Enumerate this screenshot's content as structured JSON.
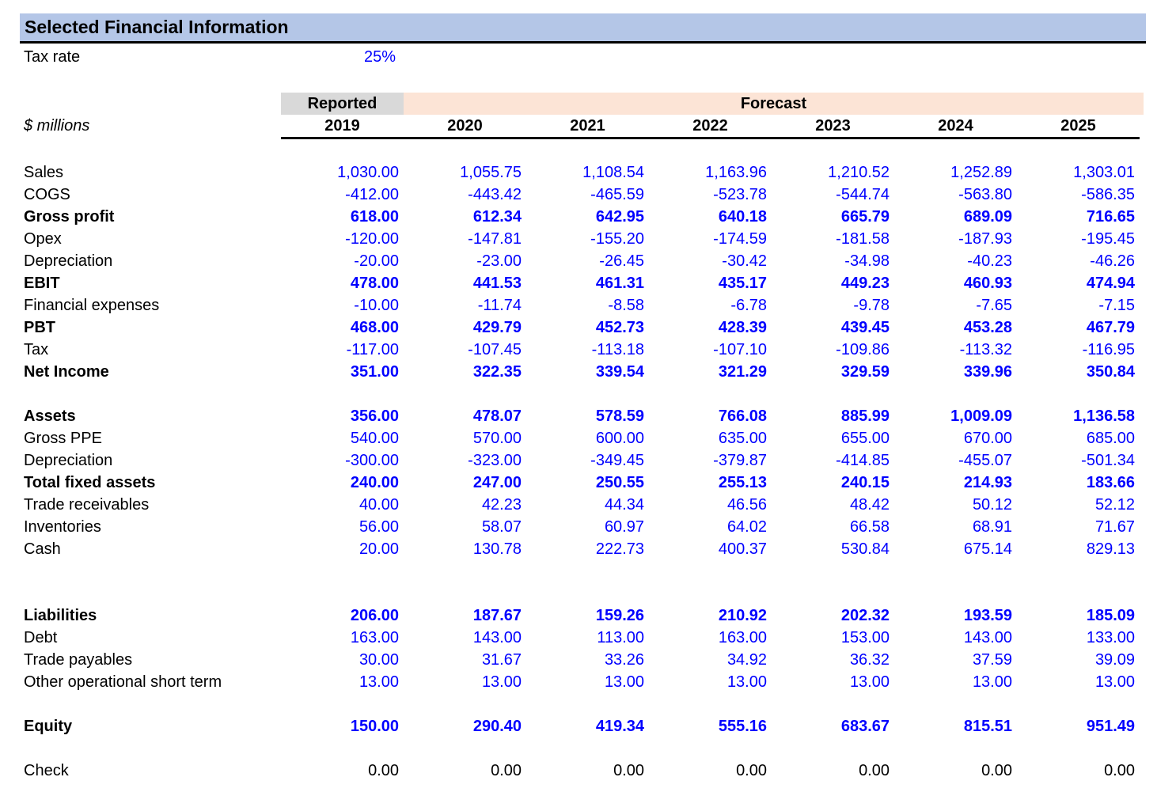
{
  "title": "Selected Financial Information",
  "tax": {
    "label": "Tax rate",
    "value": "25%"
  },
  "table": {
    "unit_label": "$ millions",
    "reported_label": "Reported",
    "forecast_label": "Forecast",
    "years": [
      "2019",
      "2020",
      "2021",
      "2022",
      "2023",
      "2024",
      "2025"
    ],
    "sections": [
      {
        "name": "income-statement",
        "gap_rows": 0,
        "rows": [
          {
            "label": "Sales",
            "bold": false,
            "values": [
              "1,030.00",
              "1,055.75",
              "1,108.54",
              "1,163.96",
              "1,210.52",
              "1,252.89",
              "1,303.01"
            ]
          },
          {
            "label": "COGS",
            "bold": false,
            "values": [
              "-412.00",
              "-443.42",
              "-465.59",
              "-523.78",
              "-544.74",
              "-563.80",
              "-586.35"
            ]
          },
          {
            "label": "Gross profit",
            "bold": true,
            "values": [
              "618.00",
              "612.34",
              "642.95",
              "640.18",
              "665.79",
              "689.09",
              "716.65"
            ]
          },
          {
            "label": "Opex",
            "bold": false,
            "values": [
              "-120.00",
              "-147.81",
              "-155.20",
              "-174.59",
              "-181.58",
              "-187.93",
              "-195.45"
            ]
          },
          {
            "label": "Depreciation",
            "bold": false,
            "values": [
              "-20.00",
              "-23.00",
              "-26.45",
              "-30.42",
              "-34.98",
              "-40.23",
              "-46.26"
            ]
          },
          {
            "label": "EBIT",
            "bold": true,
            "values": [
              "478.00",
              "441.53",
              "461.31",
              "435.17",
              "449.23",
              "460.93",
              "474.94"
            ]
          },
          {
            "label": "Financial expenses",
            "bold": false,
            "values": [
              "-10.00",
              "-11.74",
              "-8.58",
              "-6.78",
              "-9.78",
              "-7.65",
              "-7.15"
            ]
          },
          {
            "label": "PBT",
            "bold": true,
            "values": [
              "468.00",
              "429.79",
              "452.73",
              "428.39",
              "439.45",
              "453.28",
              "467.79"
            ]
          },
          {
            "label": "Tax",
            "bold": false,
            "values": [
              "-117.00",
              "-107.45",
              "-113.18",
              "-107.10",
              "-109.86",
              "-113.32",
              "-116.95"
            ]
          },
          {
            "label": "Net Income",
            "bold": true,
            "values": [
              "351.00",
              "322.35",
              "339.54",
              "321.29",
              "329.59",
              "339.96",
              "350.84"
            ]
          }
        ]
      },
      {
        "name": "assets",
        "gap_rows": 1,
        "rows": [
          {
            "label": "Assets",
            "bold": true,
            "values": [
              "356.00",
              "478.07",
              "578.59",
              "766.08",
              "885.99",
              "1,009.09",
              "1,136.58"
            ]
          },
          {
            "label": "Gross PPE",
            "bold": false,
            "values": [
              "540.00",
              "570.00",
              "600.00",
              "635.00",
              "655.00",
              "670.00",
              "685.00"
            ]
          },
          {
            "label": "Depreciation",
            "bold": false,
            "values": [
              "-300.00",
              "-323.00",
              "-349.45",
              "-379.87",
              "-414.85",
              "-455.07",
              "-501.34"
            ]
          },
          {
            "label": "Total fixed assets",
            "bold": true,
            "values": [
              "240.00",
              "247.00",
              "250.55",
              "255.13",
              "240.15",
              "214.93",
              "183.66"
            ]
          },
          {
            "label": "Trade receivables",
            "bold": false,
            "values": [
              "40.00",
              "42.23",
              "44.34",
              "46.56",
              "48.42",
              "50.12",
              "52.12"
            ]
          },
          {
            "label": "Inventories",
            "bold": false,
            "values": [
              "56.00",
              "58.07",
              "60.97",
              "64.02",
              "66.58",
              "68.91",
              "71.67"
            ]
          },
          {
            "label": "Cash",
            "bold": false,
            "values": [
              "20.00",
              "130.78",
              "222.73",
              "400.37",
              "530.84",
              "675.14",
              "829.13"
            ]
          }
        ]
      },
      {
        "name": "liabilities",
        "gap_rows": 2,
        "rows": [
          {
            "label": "Liabilities",
            "bold": true,
            "values": [
              "206.00",
              "187.67",
              "159.26",
              "210.92",
              "202.32",
              "193.59",
              "185.09"
            ]
          },
          {
            "label": "Debt",
            "bold": false,
            "values": [
              "163.00",
              "143.00",
              "113.00",
              "163.00",
              "153.00",
              "143.00",
              "133.00"
            ]
          },
          {
            "label": "Trade payables",
            "bold": false,
            "values": [
              "30.00",
              "31.67",
              "33.26",
              "34.92",
              "36.32",
              "37.59",
              "39.09"
            ]
          },
          {
            "label": "Other operational short term",
            "bold": false,
            "values": [
              "13.00",
              "13.00",
              "13.00",
              "13.00",
              "13.00",
              "13.00",
              "13.00"
            ]
          }
        ]
      },
      {
        "name": "equity",
        "gap_rows": 1,
        "rows": [
          {
            "label": "Equity",
            "bold": true,
            "values": [
              "150.00",
              "290.40",
              "419.34",
              "555.16",
              "683.67",
              "815.51",
              "951.49"
            ]
          }
        ]
      },
      {
        "name": "check",
        "gap_rows": 1,
        "rows": [
          {
            "label": "Check",
            "bold": false,
            "black_values": true,
            "values": [
              "0.00",
              "0.00",
              "0.00",
              "0.00",
              "0.00",
              "0.00",
              "0.00"
            ]
          }
        ]
      }
    ]
  },
  "colors": {
    "title_bg": "#B4C6E7",
    "reported_bg": "#D9D9D9",
    "forecast_bg": "#FCE4D6",
    "value_text": "#0000FF",
    "check_text": "#000000"
  }
}
